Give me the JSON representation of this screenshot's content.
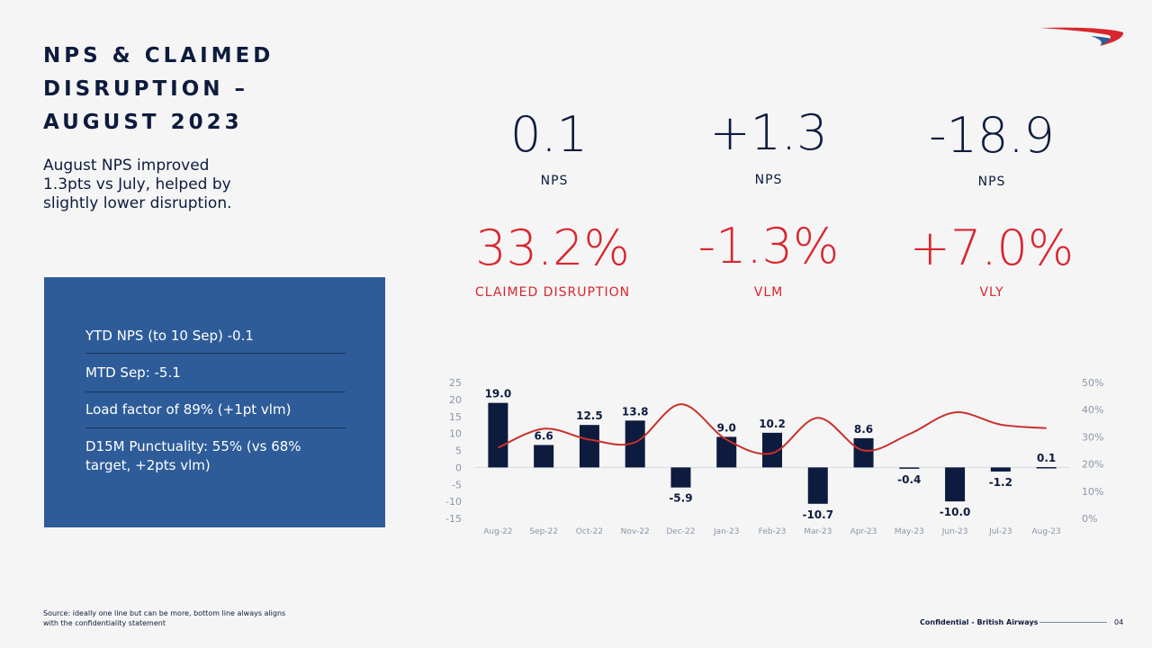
{
  "header": {
    "title": "NPS & CLAIMED DISRUPTION – AUGUST 2023",
    "subtitle": "August NPS improved 1.3pts vs July, helped by slightly lower disruption."
  },
  "info_box": {
    "items": [
      "YTD NPS (to 10 Sep) -0.1",
      "MTD Sep: -5.1",
      "Load factor of 89% (+1pt vlm)",
      "D15M Punctuality: 55% (vs 68% target, +2pts vlm)"
    ]
  },
  "kpis": [
    {
      "value": "0.1",
      "label": "NPS"
    },
    {
      "value": "+1.3",
      "label": "NPS"
    },
    {
      "value": "-18.9",
      "label": "NPS"
    },
    {
      "value": "33.2%",
      "label": "CLAIMED DISRUPTION"
    },
    {
      "value": "-1.3%",
      "label": "VLM"
    },
    {
      "value": "+7.0%",
      "label": "VLY"
    }
  ],
  "colors": {
    "navy": "#0d1b3e",
    "red": "#d8262f",
    "box": "#2e5c99",
    "line": "#c8312b"
  },
  "chart_data": {
    "type": "bar",
    "categories": [
      "Aug-22",
      "Sep-22",
      "Oct-22",
      "Nov-22",
      "Dec-22",
      "Jan-23",
      "Feb-23",
      "Mar-23",
      "Apr-23",
      "May-23",
      "Jun-23",
      "Jul-23",
      "Aug-23"
    ],
    "series": [
      {
        "values": [
          19.0,
          6.6,
          12.5,
          13.8,
          -5.9,
          9.0,
          10.2,
          -10.7,
          8.6,
          -0.4,
          -10.0,
          -1.2,
          0.1
        ],
        "type": "bar",
        "axis": "left"
      },
      {
        "values": [
          26,
          33,
          29,
          28,
          42,
          29,
          24,
          37,
          25,
          31,
          39,
          34.5,
          33.2
        ],
        "type": "line",
        "axis": "right",
        "unit": "%"
      }
    ],
    "data_labels": [
      "19.0",
      "6.6",
      "12.5",
      "13.8",
      "-5.9",
      "9.0",
      "10.2",
      "-10.7",
      "8.6",
      "-0.4",
      "-10.0",
      "-1.2",
      "0.1"
    ],
    "ylim_left": [
      -15,
      25
    ],
    "yticks_left": [
      "25",
      "20",
      "15",
      "10",
      "5",
      "0",
      "-5",
      "-10",
      "-15"
    ],
    "ylim_right": [
      0,
      50
    ],
    "yticks_right": [
      "50%",
      "40%",
      "30%",
      "20%",
      "10%",
      "0%"
    ],
    "grid": false
  },
  "footer": {
    "source": "Source: ideally one line but can be more, bottom line always aligns with the confidentiality statement",
    "confidential": "Confidential - British Airways",
    "page": "04"
  }
}
